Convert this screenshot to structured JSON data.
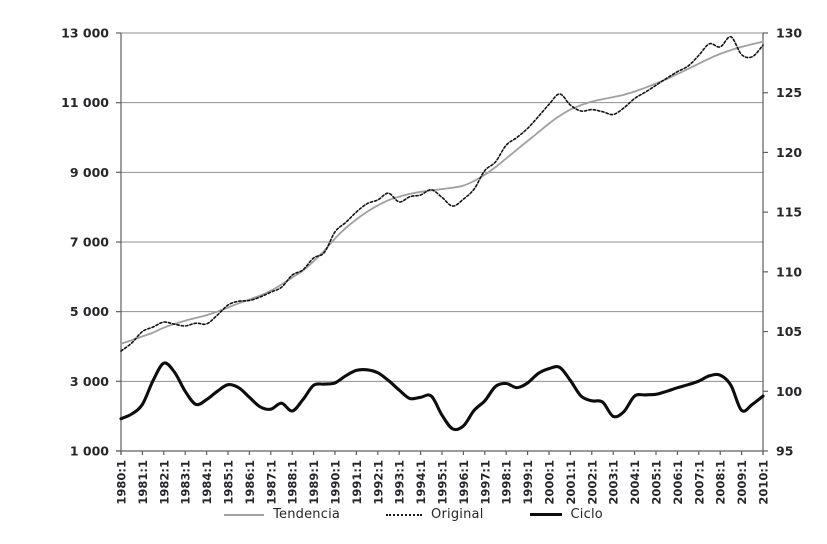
{
  "chart_data": {
    "type": "line",
    "title": "",
    "grid": "horizontal",
    "colors": {
      "grid": "#8f8f8f",
      "axis": "#5f5f5f",
      "text": "#26262b",
      "background": "#ffffff"
    },
    "x_axis": {
      "min": 1980,
      "max": 2010,
      "label_rotation": -90,
      "tick_labels": [
        "1980:1",
        "1981:1",
        "1982:1",
        "1983:1",
        "1984:1",
        "1985:1",
        "1986:1",
        "1987:1",
        "1988:1",
        "1989:1",
        "1990:1",
        "1991:1",
        "1992:1",
        "1993:1",
        "1994:1",
        "1995:1",
        "1996:1",
        "1997:1",
        "1998:1",
        "1999:1",
        "2000:1",
        "2001:1",
        "2002:1",
        "2003:1",
        "2004:1",
        "2005:1",
        "2006:1",
        "2007:1",
        "2008:1",
        "2009:1",
        "2010:1"
      ]
    },
    "y_axis_left": {
      "min": 1000,
      "max": 13000,
      "step": 2000,
      "gridline_start": 3000,
      "tick_labels": [
        "1 000",
        "3 000",
        "5 000",
        "7 000",
        "9 000",
        "11 000",
        "13 000"
      ]
    },
    "y_axis_right": {
      "min": 95,
      "max": 130,
      "step": 5,
      "tick_labels": [
        "95",
        "100",
        "105",
        "110",
        "115",
        "120",
        "125",
        "130"
      ]
    },
    "x": [
      1980,
      1980.5,
      1981,
      1981.5,
      1982,
      1982.5,
      1983,
      1983.5,
      1984,
      1984.5,
      1985,
      1985.5,
      1986,
      1986.5,
      1987,
      1987.5,
      1988,
      1988.5,
      1989,
      1989.5,
      1990,
      1990.5,
      1991,
      1991.5,
      1992,
      1992.5,
      1993,
      1993.5,
      1994,
      1994.5,
      1995,
      1995.5,
      1996,
      1996.5,
      1997,
      1997.5,
      1998,
      1998.5,
      1999,
      1999.5,
      2000,
      2000.5,
      2001,
      2001.5,
      2002,
      2002.5,
      2003,
      2003.5,
      2004,
      2004.5,
      2005,
      2005.5,
      2006,
      2006.5,
      2007,
      2007.5,
      2008,
      2008.5,
      2009,
      2009.5,
      2010
    ],
    "series": [
      {
        "name": "Tendencia",
        "axis": "left",
        "style": "solid",
        "color": "#a0a0a0",
        "width": 1.8,
        "values": [
          4080,
          4180,
          4290,
          4400,
          4540,
          4650,
          4740,
          4820,
          4900,
          5000,
          5120,
          5240,
          5350,
          5460,
          5600,
          5780,
          5980,
          6180,
          6450,
          6750,
          7100,
          7400,
          7650,
          7870,
          8050,
          8200,
          8300,
          8380,
          8440,
          8480,
          8520,
          8560,
          8620,
          8750,
          8930,
          9150,
          9400,
          9650,
          9900,
          10150,
          10400,
          10620,
          10800,
          10930,
          11030,
          11100,
          11160,
          11230,
          11320,
          11430,
          11550,
          11680,
          11820,
          11970,
          12120,
          12270,
          12400,
          12510,
          12600,
          12680,
          12750
        ]
      },
      {
        "name": "Original",
        "axis": "left",
        "style": "dotted",
        "color": "#141414",
        "width": 1.6,
        "values": [
          3870,
          4100,
          4430,
          4560,
          4700,
          4640,
          4590,
          4670,
          4650,
          4900,
          5190,
          5300,
          5320,
          5420,
          5560,
          5700,
          6050,
          6200,
          6540,
          6700,
          7290,
          7560,
          7860,
          8100,
          8210,
          8400,
          8150,
          8300,
          8350,
          8500,
          8280,
          8030,
          8230,
          8520,
          9050,
          9300,
          9780,
          10000,
          10260,
          10600,
          10950,
          11250,
          10930,
          10760,
          10800,
          10740,
          10660,
          10850,
          11120,
          11300,
          11500,
          11700,
          11890,
          12050,
          12360,
          12690,
          12600,
          12890,
          12380,
          12320,
          12650
        ]
      },
      {
        "name": "Ciclo",
        "axis": "right",
        "style": "solid",
        "color": "#0d0d0d",
        "width": 3.1,
        "values": [
          97.7,
          98.1,
          98.9,
          100.9,
          102.35,
          101.6,
          100.0,
          98.9,
          99.3,
          100.0,
          100.55,
          100.3,
          99.5,
          98.7,
          98.5,
          99.0,
          98.35,
          99.3,
          100.5,
          100.6,
          100.7,
          101.3,
          101.75,
          101.8,
          101.55,
          100.9,
          100.1,
          99.4,
          99.5,
          99.6,
          98.0,
          96.85,
          97.1,
          98.4,
          99.2,
          100.4,
          100.65,
          100.3,
          100.7,
          101.5,
          101.9,
          102.0,
          100.9,
          99.6,
          99.2,
          99.1,
          97.9,
          98.3,
          99.6,
          99.7,
          99.75,
          100.0,
          100.3,
          100.55,
          100.85,
          101.3,
          101.35,
          100.5,
          98.4,
          98.9,
          99.6
        ]
      }
    ],
    "legend": {
      "position": "bottom",
      "entries": [
        "Tendencia",
        "Original",
        "Ciclo"
      ]
    }
  }
}
